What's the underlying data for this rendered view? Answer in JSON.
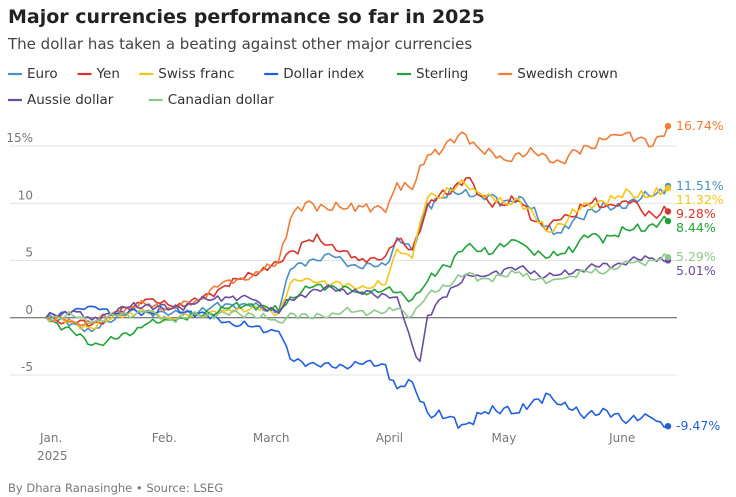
{
  "title": "Major currencies performance so far in 2025",
  "subtitle": "The dollar has taken a beating against other major currencies",
  "credit": "By Dhara Ranasinghe • Source: LSEG",
  "chart_data": {
    "type": "line",
    "title": "Major currencies performance so far in 2025",
    "subtitle": "The dollar has taken a beating against other major currencies",
    "xlabel": "",
    "ylabel": "",
    "x_start": "2025-01-01",
    "x_end": "2025-06-13",
    "ylim": [
      -10,
      17.5
    ],
    "yticks": [
      {
        "value": 15,
        "label": "15%"
      },
      {
        "value": 10,
        "label": "10"
      },
      {
        "value": 5,
        "label": "5"
      },
      {
        "value": 0,
        "label": "0"
      },
      {
        "value": -5,
        "label": "-5"
      }
    ],
    "xticks": [
      {
        "date": "2025-01-01",
        "label": "Jan.",
        "sublabel": "2025"
      },
      {
        "date": "2025-02-01",
        "label": "Feb."
      },
      {
        "date": "2025-03-01",
        "label": "March"
      },
      {
        "date": "2025-04-01",
        "label": "April"
      },
      {
        "date": "2025-05-01",
        "label": "May"
      },
      {
        "date": "2025-06-01",
        "label": "June"
      }
    ],
    "grid": "horizontal",
    "legend_position": "top",
    "series": [
      {
        "name": "Euro",
        "color": "#4a90c8",
        "end_label": "11.51%",
        "points": [
          [
            "2025-01-01",
            0
          ],
          [
            "2025-01-08",
            -0.5
          ],
          [
            "2025-01-13",
            -1.2
          ],
          [
            "2025-01-20",
            0.3
          ],
          [
            "2025-01-27",
            0.6
          ],
          [
            "2025-02-03",
            0.4
          ],
          [
            "2025-02-10",
            0.5
          ],
          [
            "2025-02-17",
            1.2
          ],
          [
            "2025-02-24",
            1.0
          ],
          [
            "2025-03-03",
            0.6
          ],
          [
            "2025-03-06",
            4.2
          ],
          [
            "2025-03-11",
            5.0
          ],
          [
            "2025-03-17",
            5.4
          ],
          [
            "2025-03-24",
            4.4
          ],
          [
            "2025-03-31",
            4.6
          ],
          [
            "2025-04-03",
            7.0
          ],
          [
            "2025-04-07",
            5.9
          ],
          [
            "2025-04-11",
            10.0
          ],
          [
            "2025-04-21",
            11.2
          ],
          [
            "2025-04-25",
            10.6
          ],
          [
            "2025-05-01",
            10.2
          ],
          [
            "2025-05-05",
            10.6
          ],
          [
            "2025-05-12",
            8.0
          ],
          [
            "2025-05-16",
            7.4
          ],
          [
            "2025-05-23",
            9.4
          ],
          [
            "2025-05-30",
            9.6
          ],
          [
            "2025-06-03",
            10.2
          ],
          [
            "2025-06-09",
            10.6
          ],
          [
            "2025-06-13",
            11.51
          ]
        ]
      },
      {
        "name": "Yen",
        "color": "#d9342b",
        "end_label": "9.28%",
        "points": [
          [
            "2025-01-01",
            0
          ],
          [
            "2025-01-08",
            -0.4
          ],
          [
            "2025-01-13",
            -0.6
          ],
          [
            "2025-01-20",
            0.4
          ],
          [
            "2025-01-27",
            1.6
          ],
          [
            "2025-02-03",
            1.0
          ],
          [
            "2025-02-10",
            1.5
          ],
          [
            "2025-02-17",
            2.8
          ],
          [
            "2025-02-24",
            3.8
          ],
          [
            "2025-03-03",
            4.8
          ],
          [
            "2025-03-06",
            5.8
          ],
          [
            "2025-03-11",
            6.8
          ],
          [
            "2025-03-17",
            6.4
          ],
          [
            "2025-03-24",
            5.0
          ],
          [
            "2025-03-31",
            5.4
          ],
          [
            "2025-04-03",
            6.8
          ],
          [
            "2025-04-07",
            6.0
          ],
          [
            "2025-04-11",
            9.8
          ],
          [
            "2025-04-21",
            12.2
          ],
          [
            "2025-04-25",
            10.6
          ],
          [
            "2025-05-01",
            9.8
          ],
          [
            "2025-05-05",
            10.2
          ],
          [
            "2025-05-12",
            7.6
          ],
          [
            "2025-05-16",
            8.6
          ],
          [
            "2025-05-23",
            9.9
          ],
          [
            "2025-05-30",
            9.8
          ],
          [
            "2025-06-03",
            10.0
          ],
          [
            "2025-06-09",
            9.0
          ],
          [
            "2025-06-13",
            9.28
          ]
        ]
      },
      {
        "name": "Swiss franc",
        "color": "#f5c518",
        "end_label": "11.32%",
        "points": [
          [
            "2025-01-01",
            0
          ],
          [
            "2025-01-08",
            -0.4
          ],
          [
            "2025-01-13",
            -0.9
          ],
          [
            "2025-01-20",
            0.2
          ],
          [
            "2025-01-27",
            0.6
          ],
          [
            "2025-02-03",
            -0.1
          ],
          [
            "2025-02-10",
            0.3
          ],
          [
            "2025-02-17",
            0.6
          ],
          [
            "2025-02-24",
            0.9
          ],
          [
            "2025-03-03",
            0.4
          ],
          [
            "2025-03-06",
            3.0
          ],
          [
            "2025-03-11",
            3.4
          ],
          [
            "2025-03-17",
            3.0
          ],
          [
            "2025-03-24",
            2.6
          ],
          [
            "2025-03-31",
            2.9
          ],
          [
            "2025-04-03",
            6.0
          ],
          [
            "2025-04-07",
            5.2
          ],
          [
            "2025-04-11",
            10.5
          ],
          [
            "2025-04-21",
            11.6
          ],
          [
            "2025-04-25",
            10.8
          ],
          [
            "2025-05-01",
            10.0
          ],
          [
            "2025-05-05",
            10.4
          ],
          [
            "2025-05-12",
            7.6
          ],
          [
            "2025-05-16",
            8.2
          ],
          [
            "2025-05-23",
            10.0
          ],
          [
            "2025-05-30",
            10.4
          ],
          [
            "2025-06-03",
            11.0
          ],
          [
            "2025-06-09",
            10.6
          ],
          [
            "2025-06-13",
            11.32
          ]
        ]
      },
      {
        "name": "Dollar index",
        "color": "#1f5fe0",
        "end_label": "-9.47%",
        "points": [
          [
            "2025-01-01",
            0
          ],
          [
            "2025-01-08",
            0.6
          ],
          [
            "2025-01-13",
            1.0
          ],
          [
            "2025-01-20",
            0.4
          ],
          [
            "2025-01-27",
            0.5
          ],
          [
            "2025-02-03",
            0.8
          ],
          [
            "2025-02-10",
            0.4
          ],
          [
            "2025-02-17",
            -0.4
          ],
          [
            "2025-02-24",
            -0.8
          ],
          [
            "2025-03-03",
            -1.2
          ],
          [
            "2025-03-06",
            -3.6
          ],
          [
            "2025-03-11",
            -4.0
          ],
          [
            "2025-03-17",
            -4.3
          ],
          [
            "2025-03-24",
            -4.0
          ],
          [
            "2025-03-31",
            -4.1
          ],
          [
            "2025-04-03",
            -6.2
          ],
          [
            "2025-04-07",
            -5.6
          ],
          [
            "2025-04-11",
            -8.3
          ],
          [
            "2025-04-21",
            -9.3
          ],
          [
            "2025-04-25",
            -8.4
          ],
          [
            "2025-05-01",
            -7.9
          ],
          [
            "2025-05-05",
            -8.3
          ],
          [
            "2025-05-12",
            -6.6
          ],
          [
            "2025-05-16",
            -7.6
          ],
          [
            "2025-05-23",
            -8.4
          ],
          [
            "2025-05-30",
            -8.4
          ],
          [
            "2025-06-03",
            -8.9
          ],
          [
            "2025-06-09",
            -8.8
          ],
          [
            "2025-06-13",
            -9.47
          ]
        ]
      },
      {
        "name": "Sterling",
        "color": "#22a33a",
        "end_label": "8.44%",
        "points": [
          [
            "2025-01-01",
            0
          ],
          [
            "2025-01-08",
            -1.2
          ],
          [
            "2025-01-13",
            -2.4
          ],
          [
            "2025-01-20",
            -1.8
          ],
          [
            "2025-01-27",
            -0.6
          ],
          [
            "2025-02-03",
            -0.2
          ],
          [
            "2025-02-10",
            0.2
          ],
          [
            "2025-02-17",
            0.8
          ],
          [
            "2025-02-24",
            1.2
          ],
          [
            "2025-03-03",
            0.6
          ],
          [
            "2025-03-06",
            1.8
          ],
          [
            "2025-03-11",
            2.6
          ],
          [
            "2025-03-17",
            2.8
          ],
          [
            "2025-03-24",
            2.2
          ],
          [
            "2025-03-31",
            2.5
          ],
          [
            "2025-04-03",
            2.2
          ],
          [
            "2025-04-07",
            1.6
          ],
          [
            "2025-04-11",
            3.2
          ],
          [
            "2025-04-21",
            6.2
          ],
          [
            "2025-04-25",
            5.8
          ],
          [
            "2025-05-01",
            6.2
          ],
          [
            "2025-05-05",
            6.6
          ],
          [
            "2025-05-12",
            5.2
          ],
          [
            "2025-05-16",
            5.6
          ],
          [
            "2025-05-23",
            7.0
          ],
          [
            "2025-05-30",
            7.2
          ],
          [
            "2025-06-03",
            7.6
          ],
          [
            "2025-06-09",
            8.2
          ],
          [
            "2025-06-13",
            8.44
          ]
        ]
      },
      {
        "name": "Swedish crown",
        "color": "#f07c36",
        "end_label": "16.74%",
        "points": [
          [
            "2025-01-01",
            0
          ],
          [
            "2025-01-08",
            -0.3
          ],
          [
            "2025-01-13",
            -0.5
          ],
          [
            "2025-01-20",
            0.6
          ],
          [
            "2025-01-27",
            1.2
          ],
          [
            "2025-02-03",
            0.8
          ],
          [
            "2025-02-10",
            1.6
          ],
          [
            "2025-02-17",
            3.2
          ],
          [
            "2025-02-24",
            3.6
          ],
          [
            "2025-03-03",
            5.0
          ],
          [
            "2025-03-06",
            8.6
          ],
          [
            "2025-03-11",
            10.2
          ],
          [
            "2025-03-17",
            9.4
          ],
          [
            "2025-03-24",
            9.8
          ],
          [
            "2025-03-31",
            9.2
          ],
          [
            "2025-04-03",
            11.8
          ],
          [
            "2025-04-07",
            11.2
          ],
          [
            "2025-04-11",
            14.2
          ],
          [
            "2025-04-21",
            16.0
          ],
          [
            "2025-04-25",
            14.6
          ],
          [
            "2025-05-01",
            13.8
          ],
          [
            "2025-05-05",
            14.4
          ],
          [
            "2025-05-12",
            14.2
          ],
          [
            "2025-05-16",
            13.6
          ],
          [
            "2025-05-23",
            15.0
          ],
          [
            "2025-05-30",
            16.0
          ],
          [
            "2025-06-03",
            16.2
          ],
          [
            "2025-06-09",
            15.0
          ],
          [
            "2025-06-13",
            16.74
          ]
        ]
      },
      {
        "name": "Aussie dollar",
        "color": "#6b4ea3",
        "end_label": "5.01%",
        "points": [
          [
            "2025-01-01",
            0
          ],
          [
            "2025-01-08",
            0.6
          ],
          [
            "2025-01-13",
            -0.2
          ],
          [
            "2025-01-20",
            0.8
          ],
          [
            "2025-01-27",
            1.1
          ],
          [
            "2025-02-03",
            0.8
          ],
          [
            "2025-02-10",
            1.4
          ],
          [
            "2025-02-17",
            1.8
          ],
          [
            "2025-02-24",
            1.6
          ],
          [
            "2025-03-03",
            0.4
          ],
          [
            "2025-03-06",
            1.6
          ],
          [
            "2025-03-11",
            2.2
          ],
          [
            "2025-03-17",
            2.6
          ],
          [
            "2025-03-24",
            2.2
          ],
          [
            "2025-03-31",
            2.0
          ],
          [
            "2025-04-03",
            1.8
          ],
          [
            "2025-04-07",
            -2.4
          ],
          [
            "2025-04-09",
            -3.8
          ],
          [
            "2025-04-11",
            0.2
          ],
          [
            "2025-04-21",
            3.8
          ],
          [
            "2025-04-25",
            3.6
          ],
          [
            "2025-05-01",
            4.2
          ],
          [
            "2025-05-05",
            4.4
          ],
          [
            "2025-05-12",
            3.6
          ],
          [
            "2025-05-16",
            3.8
          ],
          [
            "2025-05-23",
            4.4
          ],
          [
            "2025-05-30",
            4.6
          ],
          [
            "2025-06-03",
            5.0
          ],
          [
            "2025-06-09",
            5.2
          ],
          [
            "2025-06-13",
            5.01
          ]
        ]
      },
      {
        "name": "Canadian dollar",
        "color": "#8fc98a",
        "end_label": "5.29%",
        "points": [
          [
            "2025-01-01",
            0
          ],
          [
            "2025-01-08",
            0.2
          ],
          [
            "2025-01-13",
            -0.4
          ],
          [
            "2025-01-20",
            0.2
          ],
          [
            "2025-01-27",
            0.5
          ],
          [
            "2025-02-03",
            -0.2
          ],
          [
            "2025-02-10",
            0.2
          ],
          [
            "2025-02-17",
            0.4
          ],
          [
            "2025-02-24",
            0.3
          ],
          [
            "2025-03-03",
            -0.4
          ],
          [
            "2025-03-06",
            0.4
          ],
          [
            "2025-03-11",
            0.0
          ],
          [
            "2025-03-17",
            0.4
          ],
          [
            "2025-03-24",
            0.6
          ],
          [
            "2025-03-31",
            0.5
          ],
          [
            "2025-04-03",
            0.8
          ],
          [
            "2025-04-07",
            0.2
          ],
          [
            "2025-04-11",
            2.0
          ],
          [
            "2025-04-21",
            3.8
          ],
          [
            "2025-04-25",
            3.4
          ],
          [
            "2025-05-01",
            3.6
          ],
          [
            "2025-05-05",
            4.0
          ],
          [
            "2025-05-12",
            3.0
          ],
          [
            "2025-05-16",
            3.4
          ],
          [
            "2025-05-23",
            4.0
          ],
          [
            "2025-05-30",
            4.2
          ],
          [
            "2025-06-03",
            4.8
          ],
          [
            "2025-06-09",
            5.0
          ],
          [
            "2025-06-13",
            5.29
          ]
        ]
      }
    ]
  }
}
